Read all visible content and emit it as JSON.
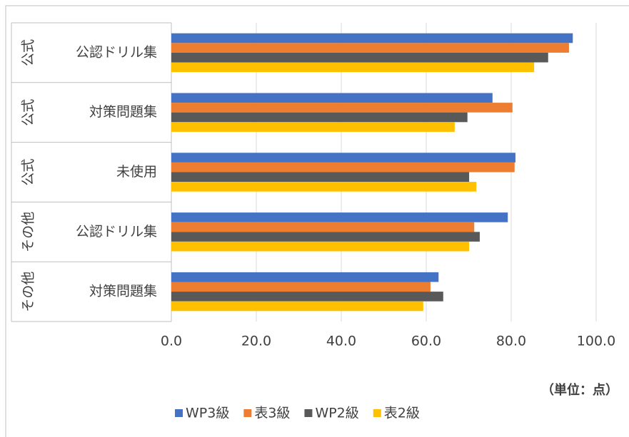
{
  "chart_data": {
    "type": "bar",
    "orientation": "horizontal",
    "groups": [
      "公式",
      "公式",
      "公式",
      "その他",
      "その他"
    ],
    "categories": [
      "公認ドリル集",
      "対策問題集",
      "未使用",
      "公認ドリル集",
      "対策問題集"
    ],
    "series": [
      {
        "name": "WP3級",
        "color": "#4472c4",
        "values": [
          94.5,
          75.6,
          81.0,
          79.2,
          62.9
        ]
      },
      {
        "name": "表3級",
        "color": "#ed7d31",
        "values": [
          93.6,
          80.3,
          80.8,
          71.3,
          61.0
        ]
      },
      {
        "name": "WP2級",
        "color": "#595959",
        "values": [
          88.7,
          69.7,
          70.1,
          72.6,
          64.0
        ]
      },
      {
        "name": "表2級",
        "color": "#ffc000",
        "values": [
          85.4,
          66.7,
          71.8,
          70.1,
          59.3
        ]
      }
    ],
    "xlim": [
      0,
      100
    ],
    "xticks": [
      {
        "value": 0,
        "label": "0.0"
      },
      {
        "value": 20,
        "label": "20.0"
      },
      {
        "value": 40,
        "label": "40.0"
      },
      {
        "value": 60,
        "label": "60.0"
      },
      {
        "value": 80,
        "label": "80.0"
      },
      {
        "value": 100,
        "label": "100.0"
      }
    ],
    "grid": true,
    "annotation": "（単位：点）",
    "legend": "bottom"
  }
}
